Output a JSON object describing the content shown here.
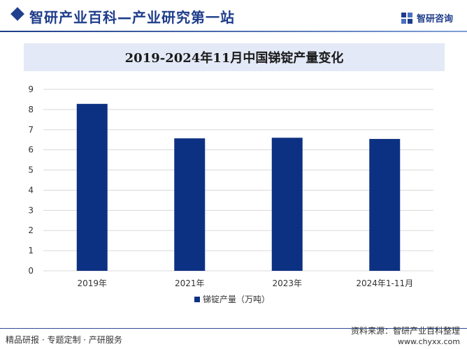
{
  "header": {
    "site_title": "智研产业百科—产业研究第一站",
    "brand_name": "智研咨询",
    "brand_color": "#1d3c8a"
  },
  "footer": {
    "services": "精品研报 · 专题定制 · 产研服务",
    "source": "资料来源：智研产业百科整理",
    "url": "www.chyxx.com"
  },
  "chart_data": {
    "type": "bar",
    "title": "2019-2024年11月中国锑锭产量变化",
    "categories": [
      "2019年",
      "2021年",
      "2023年",
      "2024年1-11月"
    ],
    "series": [
      {
        "name": "锑锭产量（万吨）",
        "values": [
          8.28,
          6.57,
          6.6,
          6.54
        ],
        "color": "#0d3182"
      }
    ],
    "ylim": [
      0,
      9
    ],
    "yticks": [
      0,
      1,
      2,
      3,
      4,
      5,
      6,
      7,
      8,
      9
    ],
    "grid": true,
    "legend_position": "bottom"
  }
}
